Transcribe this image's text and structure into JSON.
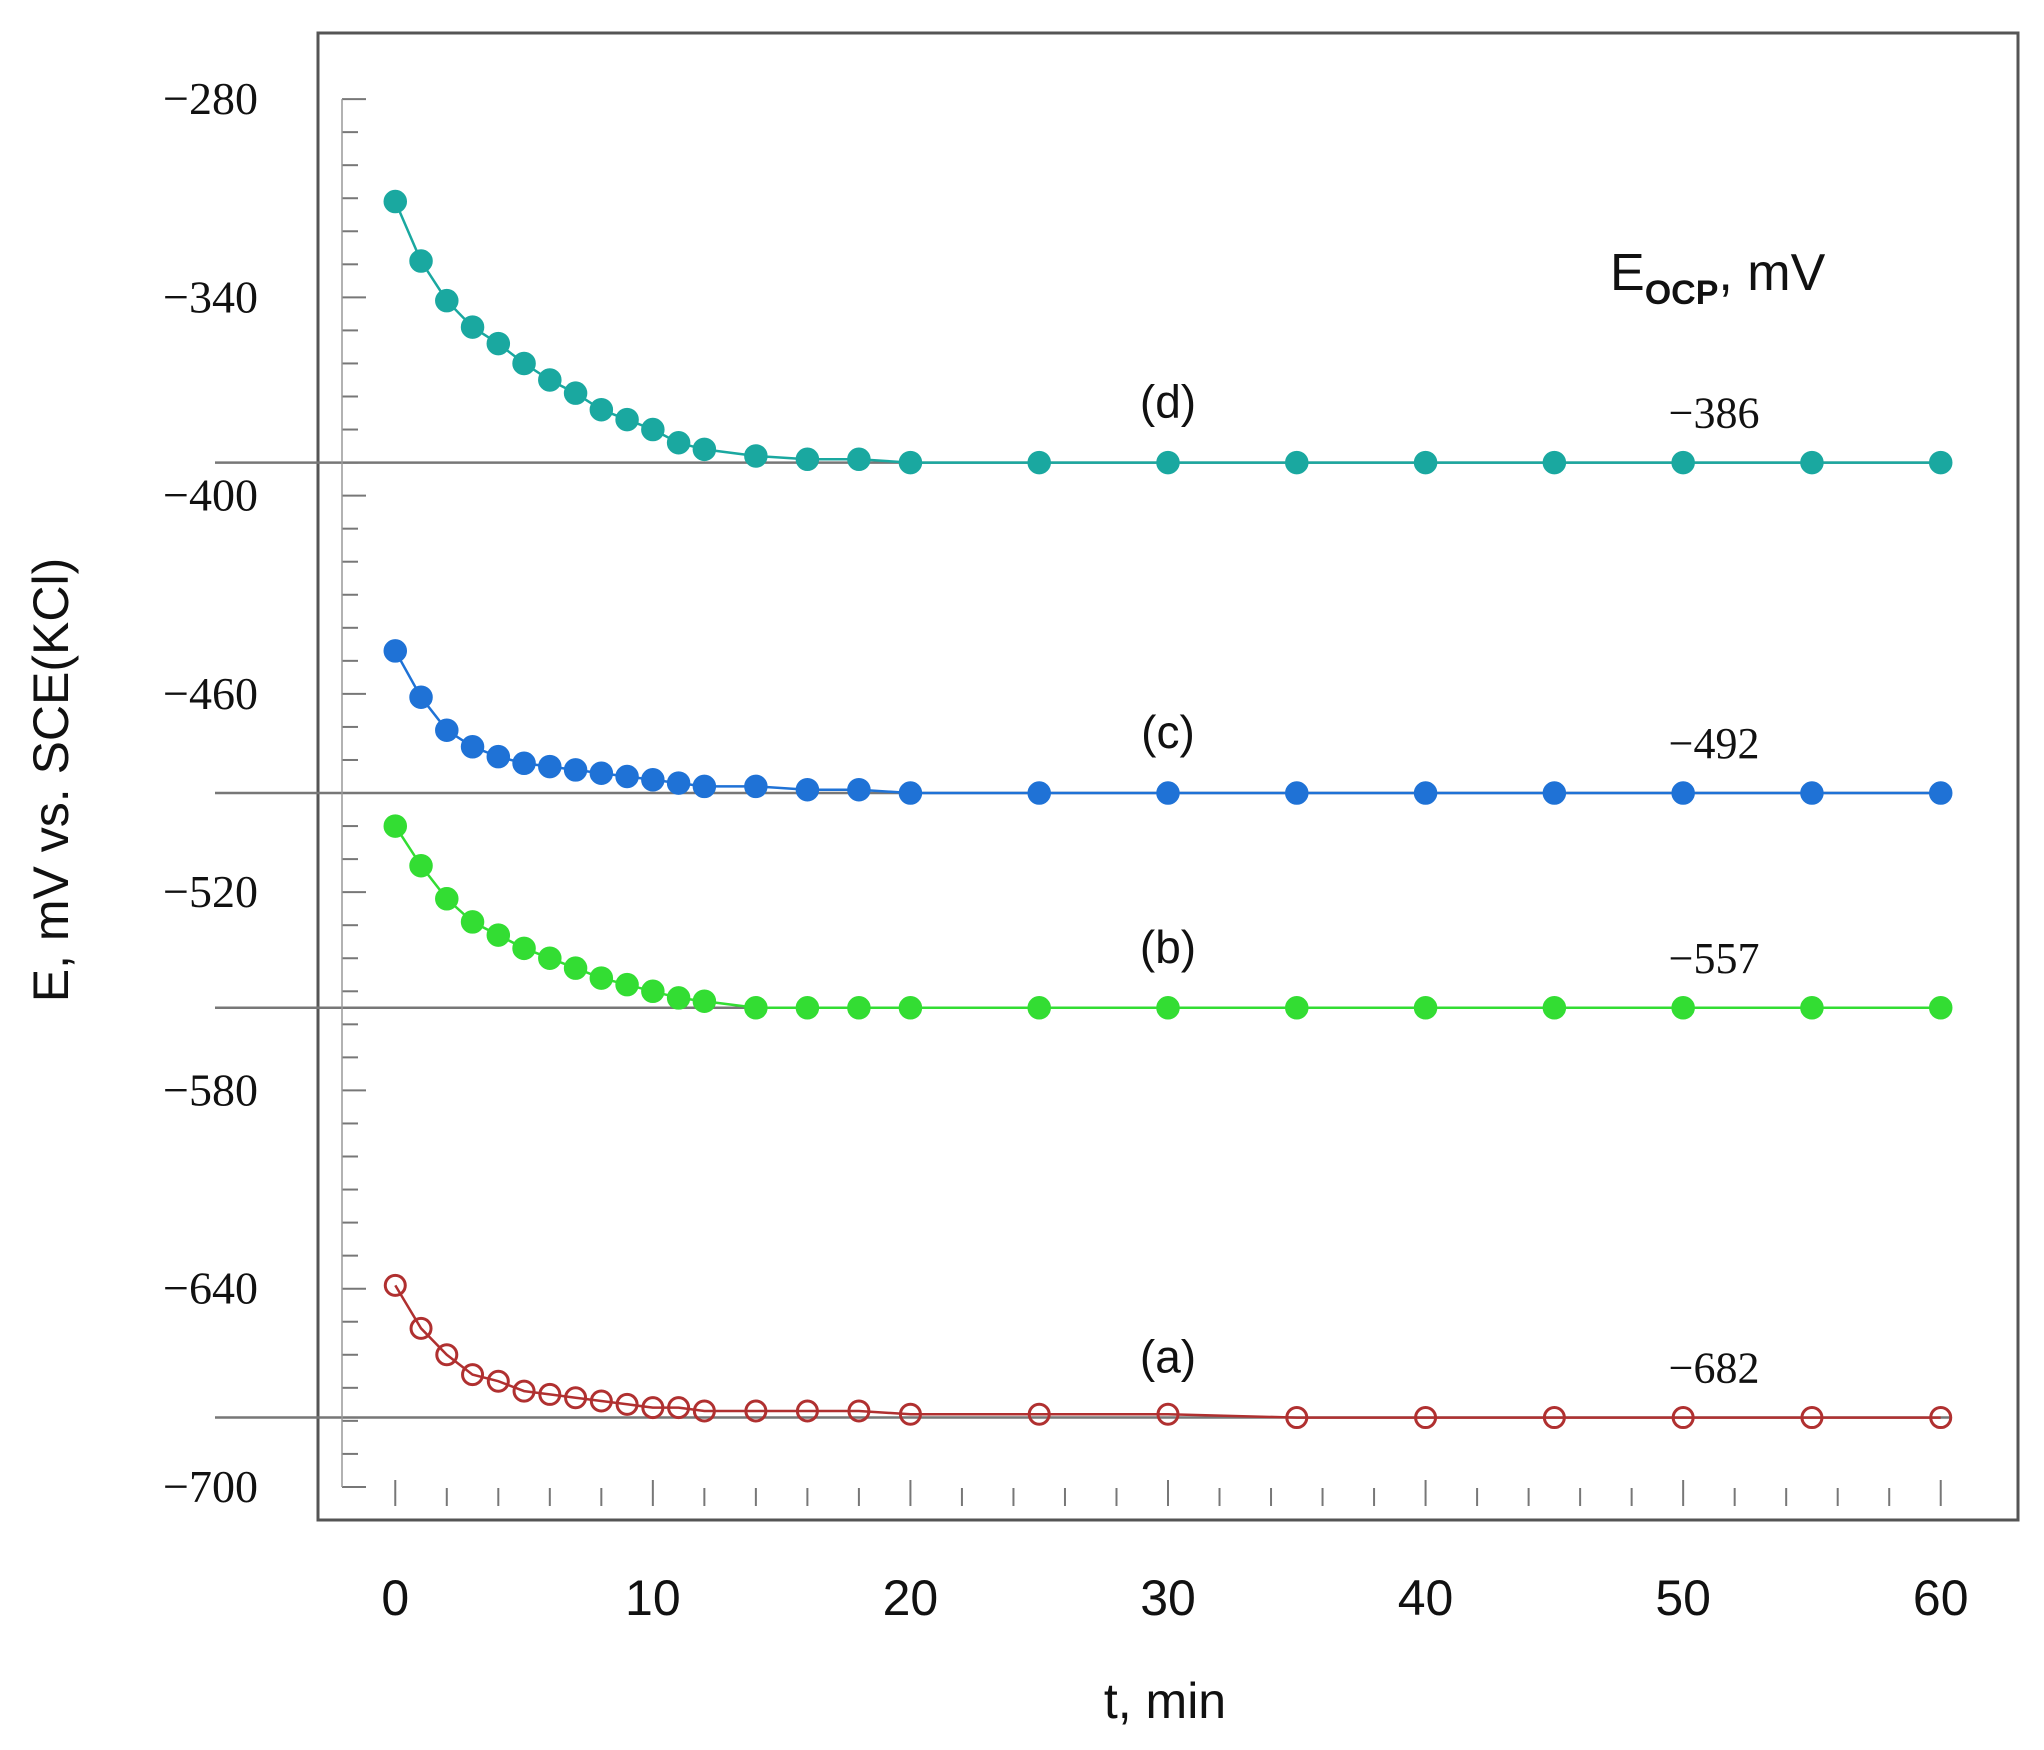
{
  "chart_data": {
    "type": "line",
    "title": "",
    "xlabel": "t, min",
    "ylabel": "E, mV vs. SCE(KCl)",
    "annotation": {
      "main": "E",
      "sub": "OCP",
      "suffix": ", mV"
    },
    "xlim": [
      -3,
      63
    ],
    "ylim": [
      -710,
      -260
    ],
    "x_ticks": [
      0,
      10,
      20,
      30,
      40,
      50,
      60
    ],
    "x_tick_labels": [
      "0",
      "10",
      "20",
      "30",
      "40",
      "50",
      "60"
    ],
    "y_ticks": [
      -280,
      -340,
      -400,
      -460,
      -520,
      -580,
      -640,
      -700
    ],
    "y_tick_labels": [
      "−280",
      "−340",
      "−400",
      "−460",
      "−520",
      "−580",
      "−640",
      "−700"
    ],
    "x": [
      0,
      1,
      2,
      3,
      4,
      5,
      6,
      7,
      8,
      9,
      10,
      11,
      12,
      14,
      16,
      18,
      20,
      25,
      30,
      35,
      40,
      45,
      50,
      55,
      60
    ],
    "series": [
      {
        "name": "(a)",
        "value_label": "−682",
        "eocp": -682,
        "color": "#b03030",
        "marker": "open",
        "values": [
          -639,
          -652,
          -660,
          -666,
          -668,
          -671,
          -672,
          -673,
          -674,
          -675,
          -676,
          -676,
          -677,
          -677,
          -677,
          -677,
          -678,
          -678,
          -678,
          -679,
          -679,
          -679,
          -679,
          -679,
          -679
        ]
      },
      {
        "name": "(b)",
        "value_label": "−557",
        "eocp": -557,
        "color": "#33dd33",
        "marker": "filled",
        "values": [
          -500,
          -512,
          -522,
          -529,
          -533,
          -537,
          -540,
          -543,
          -546,
          -548,
          -550,
          -552,
          -553,
          -555,
          -555,
          -555,
          -555,
          -555,
          -555,
          -555,
          -555,
          -555,
          -555,
          -555,
          -555
        ]
      },
      {
        "name": "(c)",
        "value_label": "−492",
        "eocp": -492,
        "color": "#1f72d6",
        "marker": "filled",
        "values": [
          -447,
          -461,
          -471,
          -476,
          -479,
          -481,
          -482,
          -483,
          -484,
          -485,
          -486,
          -487,
          -488,
          -488,
          -489,
          -489,
          -490,
          -490,
          -490,
          -490,
          -490,
          -490,
          -490,
          -490,
          -490
        ]
      },
      {
        "name": "(d)",
        "value_label": "−386",
        "eocp": -386,
        "color": "#1aa8a0",
        "marker": "filled",
        "values": [
          -311,
          -329,
          -341,
          -349,
          -354,
          -360,
          -365,
          -369,
          -374,
          -377,
          -380,
          -384,
          -386,
          -388,
          -389,
          -389,
          -390,
          -390,
          -390,
          -390,
          -390,
          -390,
          -390,
          -390,
          -390
        ]
      }
    ]
  }
}
